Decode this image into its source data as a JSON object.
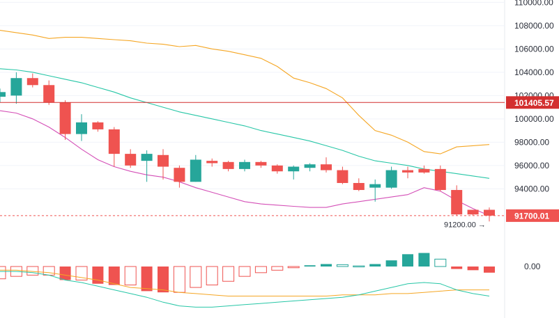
{
  "chart_data": {
    "type": "candlestick",
    "y_axis": {
      "ticks": [
        110000,
        108000,
        106000,
        104000,
        102000,
        100000,
        98000,
        96000,
        94000
      ],
      "tick_labels": [
        "110000.00",
        "108000.00",
        "106000.00",
        "104000.00",
        "102000.00",
        "100000.00",
        "98000.00",
        "96000.00",
        "94000.00"
      ],
      "range": [
        90200,
        110200
      ]
    },
    "candles": [
      {
        "o": 101900,
        "h": 102600,
        "l": 101400,
        "c": 102300
      },
      {
        "o": 102000,
        "h": 104000,
        "l": 101300,
        "c": 103500
      },
      {
        "o": 103500,
        "h": 103900,
        "l": 102700,
        "c": 102900
      },
      {
        "o": 102900,
        "h": 103300,
        "l": 101200,
        "c": 101400
      },
      {
        "o": 101400,
        "h": 101600,
        "l": 98200,
        "c": 98700
      },
      {
        "o": 98700,
        "h": 100400,
        "l": 98100,
        "c": 99700
      },
      {
        "o": 99700,
        "h": 99800,
        "l": 98900,
        "c": 99100
      },
      {
        "o": 99100,
        "h": 99300,
        "l": 95900,
        "c": 97000
      },
      {
        "o": 97000,
        "h": 97400,
        "l": 95800,
        "c": 96000
      },
      {
        "o": 96400,
        "h": 97300,
        "l": 94600,
        "c": 97000
      },
      {
        "o": 96900,
        "h": 97400,
        "l": 94800,
        "c": 95900
      },
      {
        "o": 95800,
        "h": 96000,
        "l": 94100,
        "c": 94600
      },
      {
        "o": 94600,
        "h": 96900,
        "l": 94600,
        "c": 96500
      },
      {
        "o": 96400,
        "h": 96600,
        "l": 95900,
        "c": 96200
      },
      {
        "o": 96300,
        "h": 96400,
        "l": 95500,
        "c": 95700
      },
      {
        "o": 95700,
        "h": 96500,
        "l": 95500,
        "c": 96300
      },
      {
        "o": 96300,
        "h": 96400,
        "l": 95800,
        "c": 96000
      },
      {
        "o": 96000,
        "h": 96100,
        "l": 95300,
        "c": 95500
      },
      {
        "o": 95500,
        "h": 96000,
        "l": 94800,
        "c": 95900
      },
      {
        "o": 95800,
        "h": 96200,
        "l": 95500,
        "c": 96100
      },
      {
        "o": 96100,
        "h": 96700,
        "l": 95400,
        "c": 95600
      },
      {
        "o": 95600,
        "h": 95900,
        "l": 94400,
        "c": 94500
      },
      {
        "o": 94500,
        "h": 94900,
        "l": 93800,
        "c": 93900
      },
      {
        "o": 94100,
        "h": 94800,
        "l": 92900,
        "c": 94400
      },
      {
        "o": 94100,
        "h": 95900,
        "l": 94000,
        "c": 95600
      },
      {
        "o": 95600,
        "h": 95900,
        "l": 94900,
        "c": 95400
      },
      {
        "o": 95700,
        "h": 96000,
        "l": 95300,
        "c": 95400
      },
      {
        "o": 95700,
        "h": 96000,
        "l": 93800,
        "c": 93900
      },
      {
        "o": 93900,
        "h": 94300,
        "l": 91700,
        "c": 91800
      },
      {
        "o": 92200,
        "h": 92200,
        "l": 91700,
        "c": 91800
      },
      {
        "o": 92200,
        "h": 92400,
        "l": 91200,
        "c": 91700
      }
    ],
    "overlays": [
      {
        "kind": "upper-band",
        "color": "#f5a623",
        "values": [
          107600,
          107400,
          107200,
          106900,
          107000,
          107000,
          106900,
          106800,
          106700,
          106500,
          106400,
          106200,
          106300,
          106000,
          105800,
          105500,
          105200,
          104500,
          103500,
          103100,
          102600,
          101800,
          100300,
          99000,
          98600,
          98000,
          97200,
          97000,
          97600,
          97700,
          97800
        ]
      },
      {
        "kind": "middle-band",
        "color": "#26c6a6",
        "values": [
          104300,
          104200,
          104000,
          103700,
          103400,
          103100,
          102700,
          102300,
          101800,
          101400,
          101000,
          100600,
          100300,
          100000,
          99700,
          99400,
          99000,
          98700,
          98400,
          98100,
          97700,
          97300,
          96800,
          96400,
          96200,
          96000,
          95700,
          95500,
          95300,
          95100,
          94900
        ]
      },
      {
        "kind": "lower-band",
        "color": "#d44fb7",
        "values": [
          100700,
          100500,
          100000,
          99300,
          98400,
          97400,
          96500,
          95900,
          95500,
          95200,
          95000,
          94600,
          94100,
          93700,
          93300,
          92900,
          92700,
          92600,
          92500,
          92400,
          92400,
          92700,
          92900,
          93100,
          93300,
          93500,
          94100,
          93800,
          93000,
          92300,
          91700
        ]
      }
    ],
    "price_lines": [
      {
        "value": 101405.57,
        "label": "101405.57",
        "color": "#d32f2f",
        "style": "solid"
      },
      {
        "value": 91700.01,
        "label": "91700.01",
        "color": "#ef5350",
        "style": "dashed"
      }
    ],
    "low_marker": {
      "value": 91200,
      "label": "91200.00 →"
    },
    "oscillator": {
      "zero_label": "0.00",
      "histogram": [
        -1.0,
        -0.8,
        -0.7,
        -0.7,
        -1.1,
        -1.1,
        -1.4,
        -1.5,
        -1.5,
        -2.0,
        -2.1,
        -2.1,
        -1.7,
        -1.5,
        -1.2,
        -0.8,
        -0.5,
        -0.3,
        -0.1,
        0.1,
        0.2,
        0.15,
        0.05,
        0.2,
        0.5,
        1.0,
        1.1,
        0.6,
        -0.2,
        -0.3,
        -0.5
      ],
      "signal": [
        -0.3,
        -0.3,
        -0.4,
        -0.5,
        -0.7,
        -0.9,
        -1.1,
        -1.4,
        -1.7,
        -1.8,
        -1.9,
        -2.1,
        -2.2,
        -2.3,
        -2.4,
        -2.4,
        -2.4,
        -2.4,
        -2.4,
        -2.4,
        -2.4,
        -2.3,
        -2.3,
        -2.3,
        -2.2,
        -2.2,
        -2.1,
        -2.0,
        -1.9,
        -1.9,
        -1.9
      ],
      "macd": [
        -0.4,
        -0.4,
        -0.5,
        -0.7,
        -1.1,
        -1.3,
        -1.6,
        -1.9,
        -2.2,
        -2.5,
        -2.9,
        -3.2,
        -3.3,
        -3.3,
        -3.2,
        -3.1,
        -3.0,
        -2.9,
        -2.8,
        -2.7,
        -2.6,
        -2.5,
        -2.3,
        -2.0,
        -1.7,
        -1.4,
        -1.3,
        -1.4,
        -1.9,
        -2.2,
        -2.4
      ],
      "range": [
        -3.9,
        1.3
      ]
    },
    "colors": {
      "up": "#26a69a",
      "down": "#ef5350",
      "grid": "#f0f3fa",
      "text": "#2a2e39"
    }
  }
}
